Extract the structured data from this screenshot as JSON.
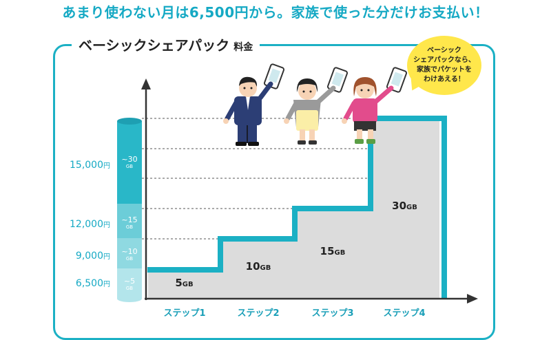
{
  "headline": "あまり使わない月は6,500円から。家族で使った分だけお支払い！",
  "panel": {
    "title": "ベーシックシェアパック",
    "title_suffix": "料金"
  },
  "bubble": {
    "lines": [
      "ベーシック",
      "シェアパックなら、",
      "家族でパケットを",
      "わけあえる！"
    ]
  },
  "prices": [
    {
      "amount": "15,000",
      "unit": "円"
    },
    {
      "amount": "12,000",
      "unit": "円"
    },
    {
      "amount": "9,000",
      "unit": "円"
    },
    {
      "amount": "6,500",
      "unit": "円"
    }
  ],
  "tiers": [
    {
      "range": "~30",
      "unit": "GB"
    },
    {
      "range": "~15",
      "unit": "GB"
    },
    {
      "range": "~10",
      "unit": "GB"
    },
    {
      "range": "~5",
      "unit": "GB"
    }
  ],
  "steps": [
    {
      "label": "ステップ1",
      "value": "5",
      "unit": "GB"
    },
    {
      "label": "ステップ2",
      "value": "10",
      "unit": "GB"
    },
    {
      "label": "ステップ3",
      "value": "15",
      "unit": "GB"
    },
    {
      "label": "ステップ4",
      "value": "30",
      "unit": "GB"
    }
  ],
  "colors": {
    "accent": "#1bb0c4",
    "headline": "#15a9c4",
    "bar_fill": "#dcdcdc",
    "bubble": "#ffe74b"
  }
}
